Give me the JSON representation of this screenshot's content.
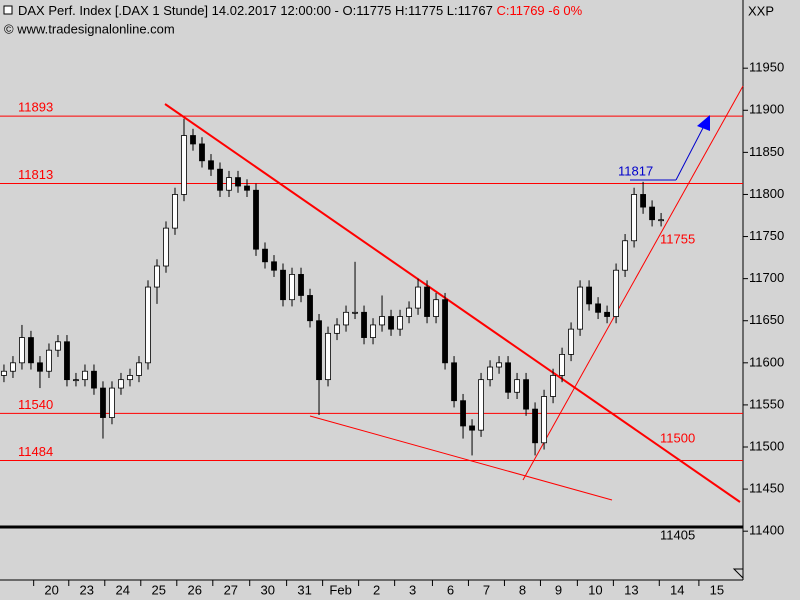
{
  "chart_data": {
    "type": "candlestick",
    "title": "DAX Perf. Index [.DAX  1 Stunde] 14.02.2017 12:00:00 - O:11775 H:11775 L:11767",
    "title_close": "C:11769 -6 0%",
    "subtitle": "© www.tradesignalonline.com",
    "symbol": "XXP",
    "open": [
      11585,
      11590,
      11600,
      11630,
      11600,
      11590,
      11615,
      11625,
      11580,
      11580,
      11590,
      11570,
      11535,
      11570,
      11580,
      11585,
      11600,
      11690,
      11715,
      11760,
      11800,
      11870,
      11860,
      11840,
      11830,
      11805,
      11820,
      11810,
      11805,
      11735,
      11720,
      11710,
      11675,
      11705,
      11680,
      11650,
      11580,
      11635,
      11645,
      11660,
      11660,
      11630,
      11645,
      11655,
      11640,
      11655,
      11665,
      11690,
      11655,
      11675,
      11600,
      11555,
      11525,
      11520,
      11580,
      11595,
      11600,
      11565,
      11580,
      11545,
      11505,
      11560,
      11585,
      11610,
      11640,
      11690,
      11670,
      11660,
      11655,
      11710,
      11745,
      11800,
      11785,
      11770
    ],
    "high": [
      11598,
      11608,
      11645,
      11638,
      11608,
      11623,
      11633,
      11633,
      11588,
      11598,
      11598,
      11578,
      11578,
      11588,
      11593,
      11608,
      11698,
      11723,
      11768,
      11808,
      11890,
      11878,
      11868,
      11848,
      11838,
      11828,
      11828,
      11818,
      11813,
      11743,
      11728,
      11718,
      11713,
      11713,
      11688,
      11658,
      11643,
      11653,
      11668,
      11720,
      11668,
      11653,
      11680,
      11663,
      11663,
      11673,
      11700,
      11698,
      11683,
      11683,
      11608,
      11563,
      11533,
      11588,
      11603,
      11608,
      11608,
      11588,
      11588,
      11553,
      11568,
      11593,
      11618,
      11648,
      11698,
      11698,
      11678,
      11668,
      11718,
      11753,
      11808,
      11815,
      11793,
      11778
    ],
    "low": [
      11577,
      11582,
      11592,
      11592,
      11570,
      11582,
      11607,
      11572,
      11572,
      11572,
      11562,
      11510,
      11527,
      11562,
      11572,
      11577,
      11592,
      11670,
      11707,
      11752,
      11792,
      11852,
      11832,
      11822,
      11797,
      11797,
      11802,
      11797,
      11727,
      11712,
      11702,
      11667,
      11667,
      11672,
      11642,
      11538,
      11572,
      11627,
      11637,
      11652,
      11622,
      11622,
      11637,
      11632,
      11632,
      11647,
      11657,
      11647,
      11647,
      11592,
      11547,
      11510,
      11490,
      11512,
      11572,
      11587,
      11557,
      11557,
      11537,
      11490,
      11497,
      11552,
      11577,
      11602,
      11632,
      11662,
      11652,
      11647,
      11647,
      11702,
      11737,
      11777,
      11762,
      11762
    ],
    "close": [
      11590,
      11600,
      11630,
      11600,
      11590,
      11615,
      11625,
      11580,
      11580,
      11590,
      11570,
      11535,
      11570,
      11580,
      11585,
      11600,
      11690,
      11715,
      11760,
      11800,
      11870,
      11860,
      11840,
      11830,
      11805,
      11820,
      11810,
      11805,
      11735,
      11720,
      11710,
      11675,
      11705,
      11680,
      11650,
      11580,
      11635,
      11645,
      11660,
      11660,
      11630,
      11645,
      11655,
      11640,
      11655,
      11665,
      11690,
      11655,
      11675,
      11600,
      11555,
      11525,
      11520,
      11580,
      11595,
      11600,
      11565,
      11580,
      11545,
      11505,
      11560,
      11585,
      11610,
      11640,
      11690,
      11670,
      11660,
      11655,
      11710,
      11745,
      11800,
      11785,
      11770,
      11770
    ],
    "xlim": [
      -0.44,
      82.1
    ],
    "xticks": [
      {
        "value": 5.3,
        "label": "20"
      },
      {
        "value": 9.2,
        "label": "23"
      },
      {
        "value": 13.2,
        "label": "24"
      },
      {
        "value": 17.2,
        "label": "25"
      },
      {
        "value": 21.2,
        "label": "26"
      },
      {
        "value": 25.2,
        "label": "27"
      },
      {
        "value": 29.3,
        "label": "30"
      },
      {
        "value": 33.4,
        "label": "31"
      },
      {
        "value": 37.4,
        "label": "Feb"
      },
      {
        "value": 41.4,
        "label": "2"
      },
      {
        "value": 45.4,
        "label": "3"
      },
      {
        "value": 49.6,
        "label": "6"
      },
      {
        "value": 53.6,
        "label": "7"
      },
      {
        "value": 57.6,
        "label": "8"
      },
      {
        "value": 61.6,
        "label": "9"
      },
      {
        "value": 65.7,
        "label": "10"
      },
      {
        "value": 69.7,
        "label": "13"
      },
      {
        "value": 74.8,
        "label": "14"
      },
      {
        "value": 79.2,
        "label": "15"
      }
    ],
    "ylim": [
      11342,
      12031
    ],
    "yticks": [
      11400,
      11450,
      11500,
      11550,
      11600,
      11650,
      11700,
      11750,
      11800,
      11850,
      11900,
      11950
    ],
    "levels": [
      11893,
      11813,
      11540,
      11484
    ],
    "level_color": "#ff0000",
    "base_level": 11405,
    "annotations": [
      11817,
      11755,
      11500
    ]
  }
}
